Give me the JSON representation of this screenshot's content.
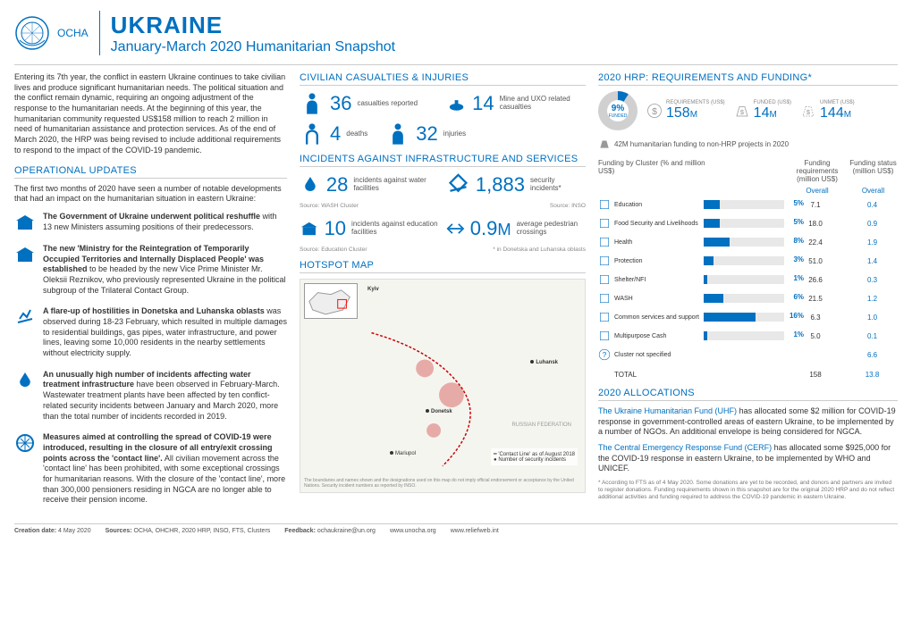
{
  "header": {
    "ocha": "OCHA",
    "title": "UKRAINE",
    "subtitle": "January-March 2020 Humanitarian Snapshot"
  },
  "intro": "Entering its 7th year, the conflict in eastern Ukraine continues to take civilian lives and produce significant humanitarian needs. The political situation and the conflict remain dynamic, requiring an ongoing adjustment of the response to the humanitarian needs. At the beginning of this year, the humanitarian community requested US$158 million to reach 2 million in need of humanitarian assistance and protection services. As of the end of March 2020, the HRP was being revised to include additional requirements to respond to the impact of the COVID-19 pandemic.",
  "operational": {
    "heading": "OPERATIONAL UPDATES",
    "lead": "The first two months of 2020 have seen a number of notable developments that had an impact on the humanitarian situation in eastern Ukraine:",
    "items": [
      "<b>The Government of Ukraine underwent political reshuffle</b> with 13 new Ministers assuming positions of their predecessors.",
      "<b>The new 'Ministry for the Reintegration of Temporarily Occupied Territories and Internally Displaced People' was established</b> to be headed by the new Vice Prime Minister Mr. Oleksii Reznikov, who previously represented Ukraine in the political subgroup of the Trilateral Contact Group.",
      "<b>A flare-up of hostilities in Donetska and Luhanska oblasts</b> was observed during 18-23 February, which resulted in multiple damages to residential buildings, gas pipes, water infrastructure, and power lines, leaving some 10,000 residents in the nearby settlements without electricity supply.",
      "<b>An unusually high number of incidents affecting water treatment infrastructure</b> have been observed in February-March. Wastewater treatment plants have been affected by ten conflict-related security incidents between January and March 2020, more than the total number of incidents recorded in 2019.",
      "<b>Measures aimed at controlling the spread of COVID-19 were introduced, resulting in the closure of all entry/exit crossing points across the 'contact line'.</b> All civilian movement across the 'contact line' has been prohibited, with some exceptional crossings for humanitarian reasons.  With the closure of the 'contact line', more than 300,000 pensioners residing in NGCA are no longer able to receive their pension income."
    ]
  },
  "casualties": {
    "heading": "CIVILIAN CASUALTIES & INJURIES",
    "reported_n": "36",
    "reported_l": "casualties\nreported",
    "mine_n": "14",
    "mine_l": "Mine and UXO\nrelated casualties",
    "deaths_n": "4",
    "deaths_l": "deaths",
    "injuries_n": "32",
    "injuries_l": "injuries"
  },
  "incidents": {
    "heading": "INCIDENTS AGAINST INFRASTRUCTURE AND SERVICES",
    "water_n": "28",
    "water_l": "incidents against\nwater facilities",
    "water_src": "Source: WASH Cluster",
    "sec_n": "1,883",
    "sec_l": "security incidents*",
    "sec_src": "Source: INSO",
    "edu_n": "10",
    "edu_l": "incidents against\neducation facilities",
    "edu_src": "Source: Education Cluster",
    "ped_n": "0.9",
    "ped_u": "M",
    "ped_l": "average pedestrian\ncrossings",
    "ped_note": "* in Donetska and Luhanska oblasts"
  },
  "hotspot": {
    "heading": "HOTSPOT MAP",
    "legend1": "'Contact Line' as of August 2018",
    "legend2": "Number of security incidents",
    "note": "The boundaries and names shown and the designations used on this map do not imply official endorsement or acceptance by the United Nations. Security incident numbers as reported by INSO.",
    "cities": [
      "Kyiv",
      "Luhansk",
      "Donetsk",
      "Mariupol",
      "RUSSIAN FEDERATION"
    ]
  },
  "hrp": {
    "heading": "2020 HRP: REQUIREMENTS AND FUNDING*",
    "funded_pct": "9",
    "funded_pct_lbl": "FUNDED",
    "req_lbl": "REQUIREMENTS (US$)",
    "req_val": "158",
    "funded_lbl": "FUNDED (US$)",
    "funded_val": "14",
    "unmet_lbl": "UNMET (US$)",
    "unmet_val": "144",
    "nonhrp": "42M humanitarian funding to non-HRP projects in 2020",
    "table_h1": "Funding by Cluster\n(% and million US$)",
    "table_h2": "Funding requirements\n(million US$)",
    "table_h3": "Funding status\n(million US$)",
    "overall": "Overall",
    "clusters": [
      {
        "name": "Education",
        "pct": 5,
        "req": "7.1",
        "stat": "0.4"
      },
      {
        "name": "Food Security and Livelihoods",
        "pct": 5,
        "req": "18.0",
        "stat": "0.9"
      },
      {
        "name": "Health",
        "pct": 8,
        "req": "22.4",
        "stat": "1.9"
      },
      {
        "name": "Protection",
        "pct": 3,
        "req": "51.0",
        "stat": "1.4"
      },
      {
        "name": "Shelter/NFI",
        "pct": 1,
        "req": "26.6",
        "stat": "0.3"
      },
      {
        "name": "WASH",
        "pct": 6,
        "req": "21.5",
        "stat": "1.2"
      },
      {
        "name": "Common services and support",
        "pct": 16,
        "req": "6.3",
        "stat": "1.0"
      },
      {
        "name": "Multipurpose Cash",
        "pct": 1,
        "req": "5.0",
        "stat": "0.1"
      }
    ],
    "not_spec": "Cluster not specified",
    "not_spec_val": "6.6",
    "total": "TOTAL",
    "total_req": "158",
    "total_stat": "13.8"
  },
  "allocations": {
    "heading": "2020 ALLOCATIONS",
    "uhf": "<span class='fund-name'>The Ukraine Humanitarian Fund (UHF)</span> has allocated some $2 million for COVID-19 response in government-controlled areas of eastern Ukraine, to be implemented by a number of NGOs. An additional envelope is being considered for NGCA.",
    "cerf": "<span class='fund-name'>The Central Emergency Response Fund (CERF)</span> has allocated some $925,000 for the COVID-19 response in eastern Ukraine, to be implemented by WHO and UNICEF.",
    "footnote": "* According to FTS as of 4 May 2020.  Some donations are yet to be recorded, and donors and partners are invited to register donations. Funding requirements shown in this snapshot are for the original 2020 HRP and do not reflect additional activities and funding required to address the COVID-19 pandemic in eastern Ukraine."
  },
  "footer": {
    "date_lbl": "Creation date:",
    "date": "4 May 2020",
    "src_lbl": "Sources:",
    "src": "OCHA, OHCHR, 2020 HRP, INSO, FTS, Clusters",
    "fb_lbl": "Feedback:",
    "fb": "ochaukraine@un.org",
    "url1": "www.unocha.org",
    "url2": "www.reliefweb.int"
  }
}
